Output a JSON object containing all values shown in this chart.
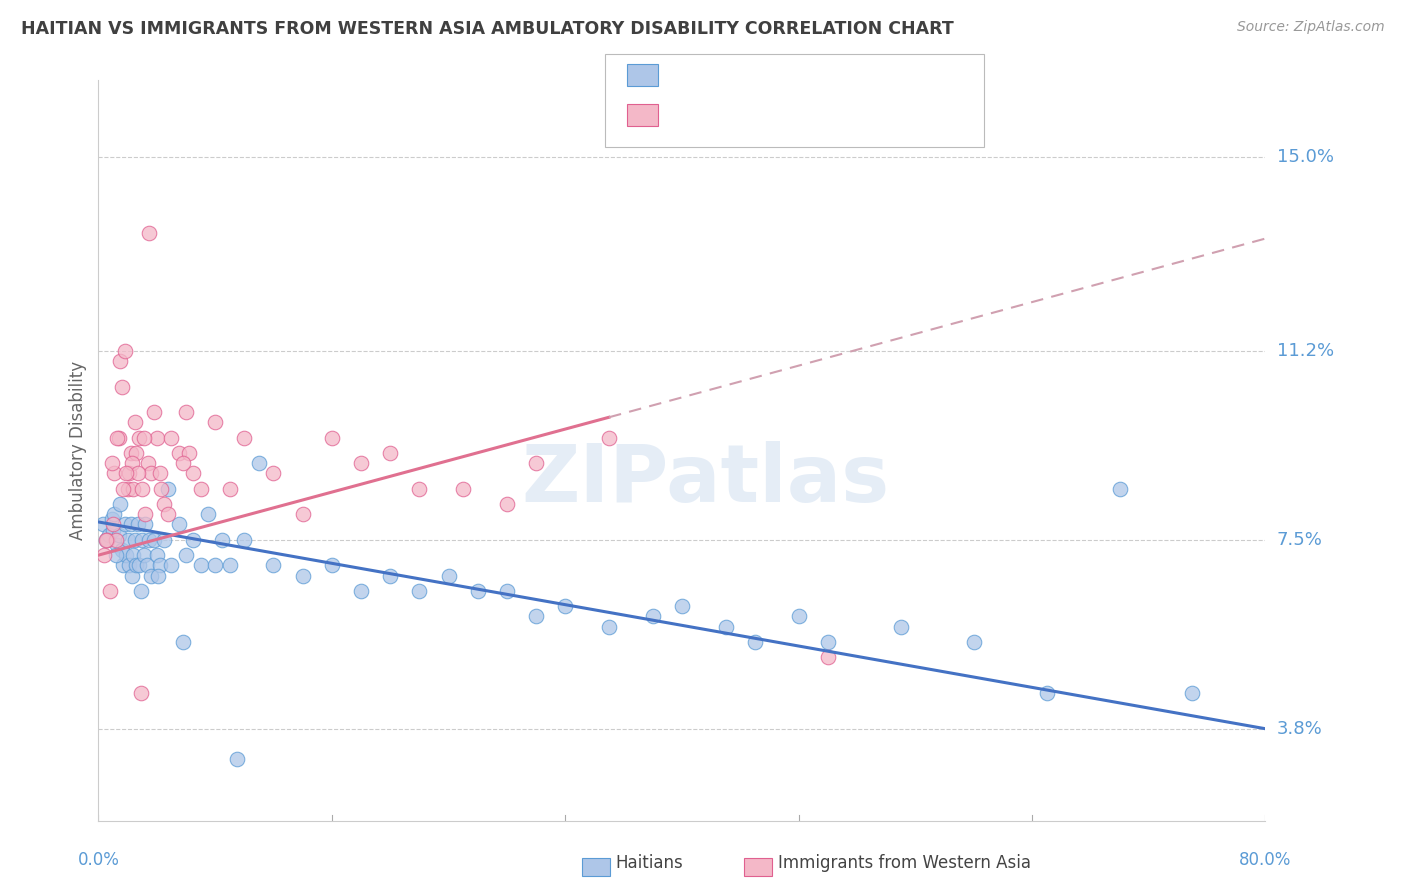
{
  "title": "HAITIAN VS IMMIGRANTS FROM WESTERN ASIA AMBULATORY DISABILITY CORRELATION CHART",
  "source": "Source: ZipAtlas.com",
  "ylabel": "Ambulatory Disability",
  "ytick_labels": [
    "3.8%",
    "7.5%",
    "11.2%",
    "15.0%"
  ],
  "ytick_values": [
    3.8,
    7.5,
    11.2,
    15.0
  ],
  "xlim": [
    0.0,
    80.0
  ],
  "ylim": [
    2.0,
    16.5
  ],
  "color_haitian_fill": "#aec6e8",
  "color_haitian_edge": "#5b9bd5",
  "color_western_fill": "#f4b8c8",
  "color_western_edge": "#e06090",
  "color_trend_haitian": "#4472c4",
  "color_trend_western": "#e07090",
  "color_trend_dashed": "#d0a0b0",
  "background_color": "#ffffff",
  "grid_color": "#cccccc",
  "label_color": "#5b9bd5",
  "title_color": "#404040",
  "watermark": "ZIPatlas",
  "haitian_x": [
    0.3,
    0.5,
    0.7,
    0.9,
    1.0,
    1.1,
    1.3,
    1.4,
    1.5,
    1.6,
    1.7,
    1.8,
    1.9,
    2.0,
    2.1,
    2.2,
    2.3,
    2.4,
    2.5,
    2.6,
    2.7,
    2.8,
    3.0,
    3.1,
    3.2,
    3.3,
    3.5,
    3.6,
    3.8,
    4.0,
    4.2,
    4.5,
    4.8,
    5.0,
    5.5,
    6.0,
    6.5,
    7.0,
    7.5,
    8.0,
    8.5,
    9.0,
    10.0,
    11.0,
    12.0,
    14.0,
    16.0,
    18.0,
    20.0,
    22.0,
    24.0,
    26.0,
    28.0,
    30.0,
    32.0,
    35.0,
    38.0,
    40.0,
    43.0,
    45.0,
    48.0,
    50.0,
    55.0,
    60.0,
    65.0,
    70.0,
    75.0,
    1.2,
    2.9,
    4.1,
    5.8,
    9.5
  ],
  "haitian_y": [
    7.8,
    7.5,
    7.6,
    7.9,
    7.7,
    8.0,
    7.4,
    7.6,
    8.2,
    7.3,
    7.0,
    7.8,
    7.2,
    7.5,
    7.0,
    7.8,
    6.8,
    7.2,
    7.5,
    7.0,
    7.8,
    7.0,
    7.5,
    7.2,
    7.8,
    7.0,
    7.5,
    6.8,
    7.5,
    7.2,
    7.0,
    7.5,
    8.5,
    7.0,
    7.8,
    7.2,
    7.5,
    7.0,
    8.0,
    7.0,
    7.5,
    7.0,
    7.5,
    9.0,
    7.0,
    6.8,
    7.0,
    6.5,
    6.8,
    6.5,
    6.8,
    6.5,
    6.5,
    6.0,
    6.2,
    5.8,
    6.0,
    6.2,
    5.8,
    5.5,
    6.0,
    5.5,
    5.8,
    5.5,
    4.5,
    8.5,
    4.5,
    7.2,
    6.5,
    6.8,
    5.5,
    3.2
  ],
  "western_x": [
    0.4,
    0.6,
    0.8,
    1.0,
    1.2,
    1.4,
    1.5,
    1.6,
    1.8,
    2.0,
    2.1,
    2.2,
    2.4,
    2.5,
    2.6,
    2.8,
    3.0,
    3.2,
    3.4,
    3.6,
    3.8,
    4.0,
    4.2,
    4.5,
    5.0,
    5.5,
    6.0,
    6.5,
    7.0,
    8.0,
    9.0,
    10.0,
    12.0,
    14.0,
    16.0,
    18.0,
    20.0,
    22.0,
    25.0,
    28.0,
    30.0,
    35.0,
    1.1,
    1.3,
    1.7,
    2.3,
    2.7,
    3.1,
    4.8,
    6.2,
    0.5,
    0.9,
    1.9,
    2.9,
    3.5,
    5.8,
    50.0,
    4.3
  ],
  "western_y": [
    7.2,
    7.5,
    6.5,
    7.8,
    7.5,
    9.5,
    11.0,
    10.5,
    11.2,
    8.5,
    8.8,
    9.2,
    8.5,
    9.8,
    9.2,
    9.5,
    8.5,
    8.0,
    9.0,
    8.8,
    10.0,
    9.5,
    8.8,
    8.2,
    9.5,
    9.2,
    10.0,
    8.8,
    8.5,
    9.8,
    8.5,
    9.5,
    8.8,
    8.0,
    9.5,
    9.0,
    9.2,
    8.5,
    8.5,
    8.2,
    9.0,
    9.5,
    8.8,
    9.5,
    8.5,
    9.0,
    8.8,
    9.5,
    8.0,
    9.2,
    7.5,
    9.0,
    8.8,
    4.5,
    13.5,
    9.0,
    5.2,
    8.5
  ],
  "trend_h_x0": 0.0,
  "trend_h_x1": 80.0,
  "trend_h_y0": 7.85,
  "trend_h_y1": 3.8,
  "trend_w_x0": 0.0,
  "trend_w_x1": 35.0,
  "trend_w_y0": 7.2,
  "trend_w_y1": 9.9,
  "trend_wd_x0": 35.0,
  "trend_wd_x1": 80.0,
  "trend_wd_y0": 9.9,
  "trend_wd_y1": 13.4
}
